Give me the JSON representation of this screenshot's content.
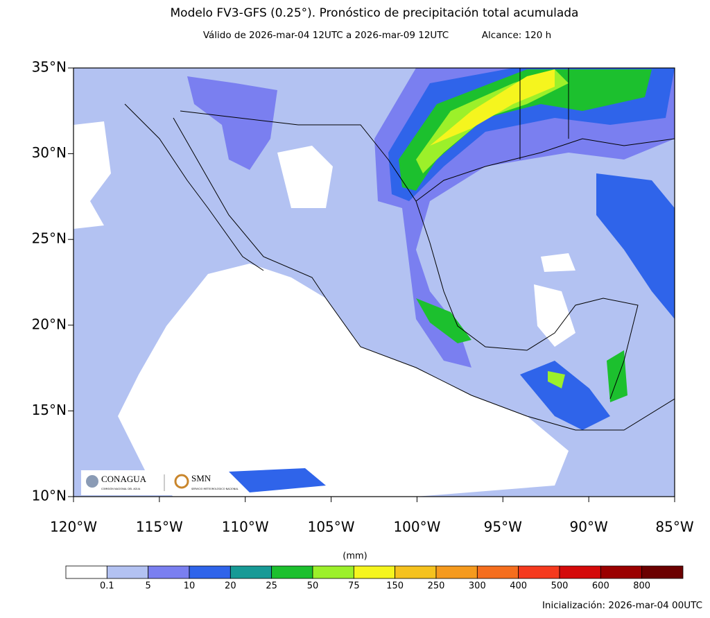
{
  "header": {
    "title": "Modelo FV3-GFS (0.25°). Pronóstico de precipitación total acumulada",
    "validity": "Válido de 2026-mar-04 12UTC a 2026-mar-09 12UTC",
    "range": "Alcance: 120 h"
  },
  "map": {
    "lat_labels": [
      "35°N",
      "30°N",
      "25°N",
      "20°N",
      "15°N",
      "10°N"
    ],
    "lon_labels": [
      "120°W",
      "115°W",
      "110°W",
      "105°W",
      "100°W",
      "95°W",
      "90°W",
      "85°W"
    ]
  },
  "logos": {
    "conagua": "CONAGUA",
    "conagua_sub": "COMISIÓN NACIONAL DEL AGUA",
    "smn": "SMN",
    "smn_sub": "SERVICIO METEOROLÓGICO NACIONAL"
  },
  "colorbar": {
    "unit": "(mm)",
    "labels": [
      "0.1",
      "5",
      "10",
      "20",
      "25",
      "50",
      "75",
      "150",
      "250",
      "300",
      "400",
      "500",
      "600",
      "800"
    ],
    "colors": [
      "#ffffff",
      "#b3c2f2",
      "#7a7ff0",
      "#2f64ea",
      "#179a96",
      "#1cc02e",
      "#9cf02a",
      "#f5f51e",
      "#f5c21e",
      "#f59a1e",
      "#f56e1e",
      "#f53a1e",
      "#d40a0a",
      "#9a0000",
      "#6b0000"
    ]
  },
  "footer": "Inicialización: 2026-mar-04 00UTC"
}
